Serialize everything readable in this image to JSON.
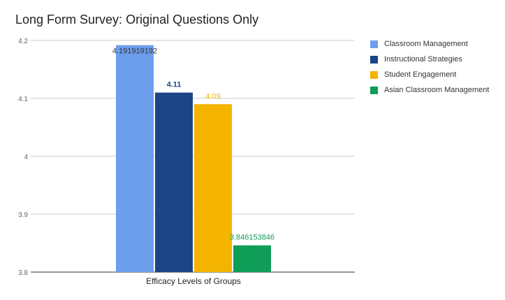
{
  "chart_data": {
    "type": "bar",
    "title": "Long Form Survey: Original Questions Only",
    "categories": [
      "Efficacy Levels of Groups"
    ],
    "series": [
      {
        "name": "Classroom Management",
        "values": [
          4.191919192
        ],
        "label": "4.191919192",
        "color": "#6d9eeb"
      },
      {
        "name": "Instructional Strategies",
        "values": [
          4.11
        ],
        "label": "4.11",
        "color": "#1c4587"
      },
      {
        "name": "Student Engagement",
        "values": [
          4.09
        ],
        "label": "4.09",
        "color": "#f4b400"
      },
      {
        "name": "Asian Classroom Management",
        "values": [
          3.846153846
        ],
        "label": "3.846153846",
        "color": "#0f9d58"
      }
    ],
    "ylim": [
      3.8,
      4.2
    ],
    "yticks": [
      "3.8",
      "3.9",
      "4",
      "4.1",
      "4.2"
    ],
    "grid": true,
    "legend_position": "right"
  }
}
